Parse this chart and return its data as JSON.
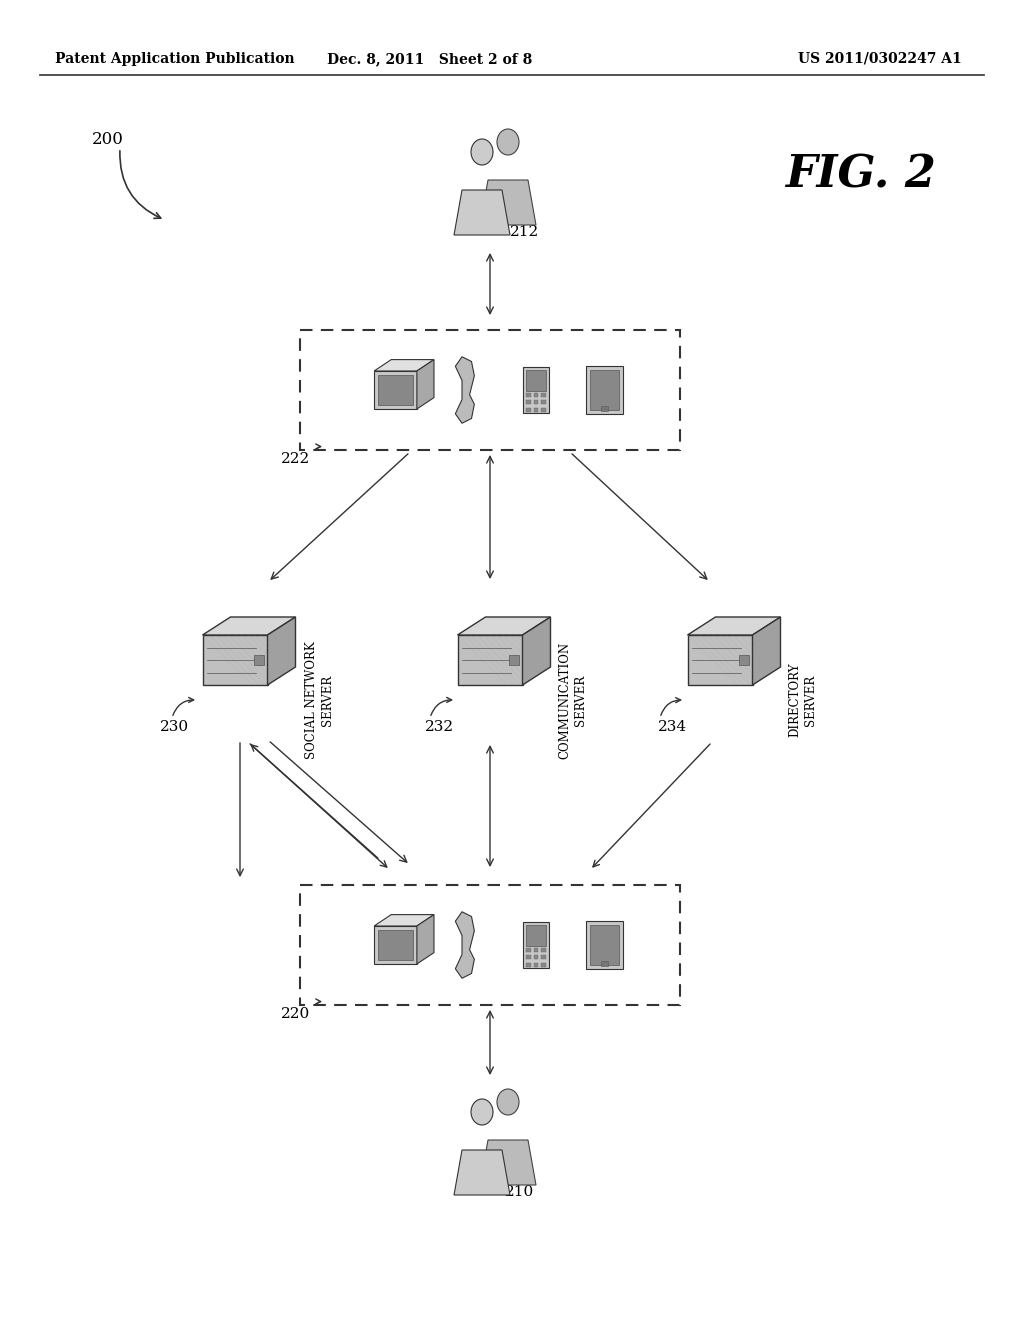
{
  "background_color": "#ffffff",
  "header_left": "Patent Application Publication",
  "header_mid": "Dec. 8, 2011   Sheet 2 of 8",
  "header_right": "US 2011/0302247 A1",
  "fig_label": "FIG. 2",
  "diagram_label": "200",
  "label_212": "212",
  "label_210": "210",
  "label_222": "222",
  "label_220": "220",
  "label_230": "230",
  "label_232": "232",
  "label_234": "234",
  "server_social": "SOCIAL NETWORK\nSERVER",
  "server_comm": "COMMUNICATION\nSERVER",
  "server_dir": "DIRECTORY\nSERVER"
}
